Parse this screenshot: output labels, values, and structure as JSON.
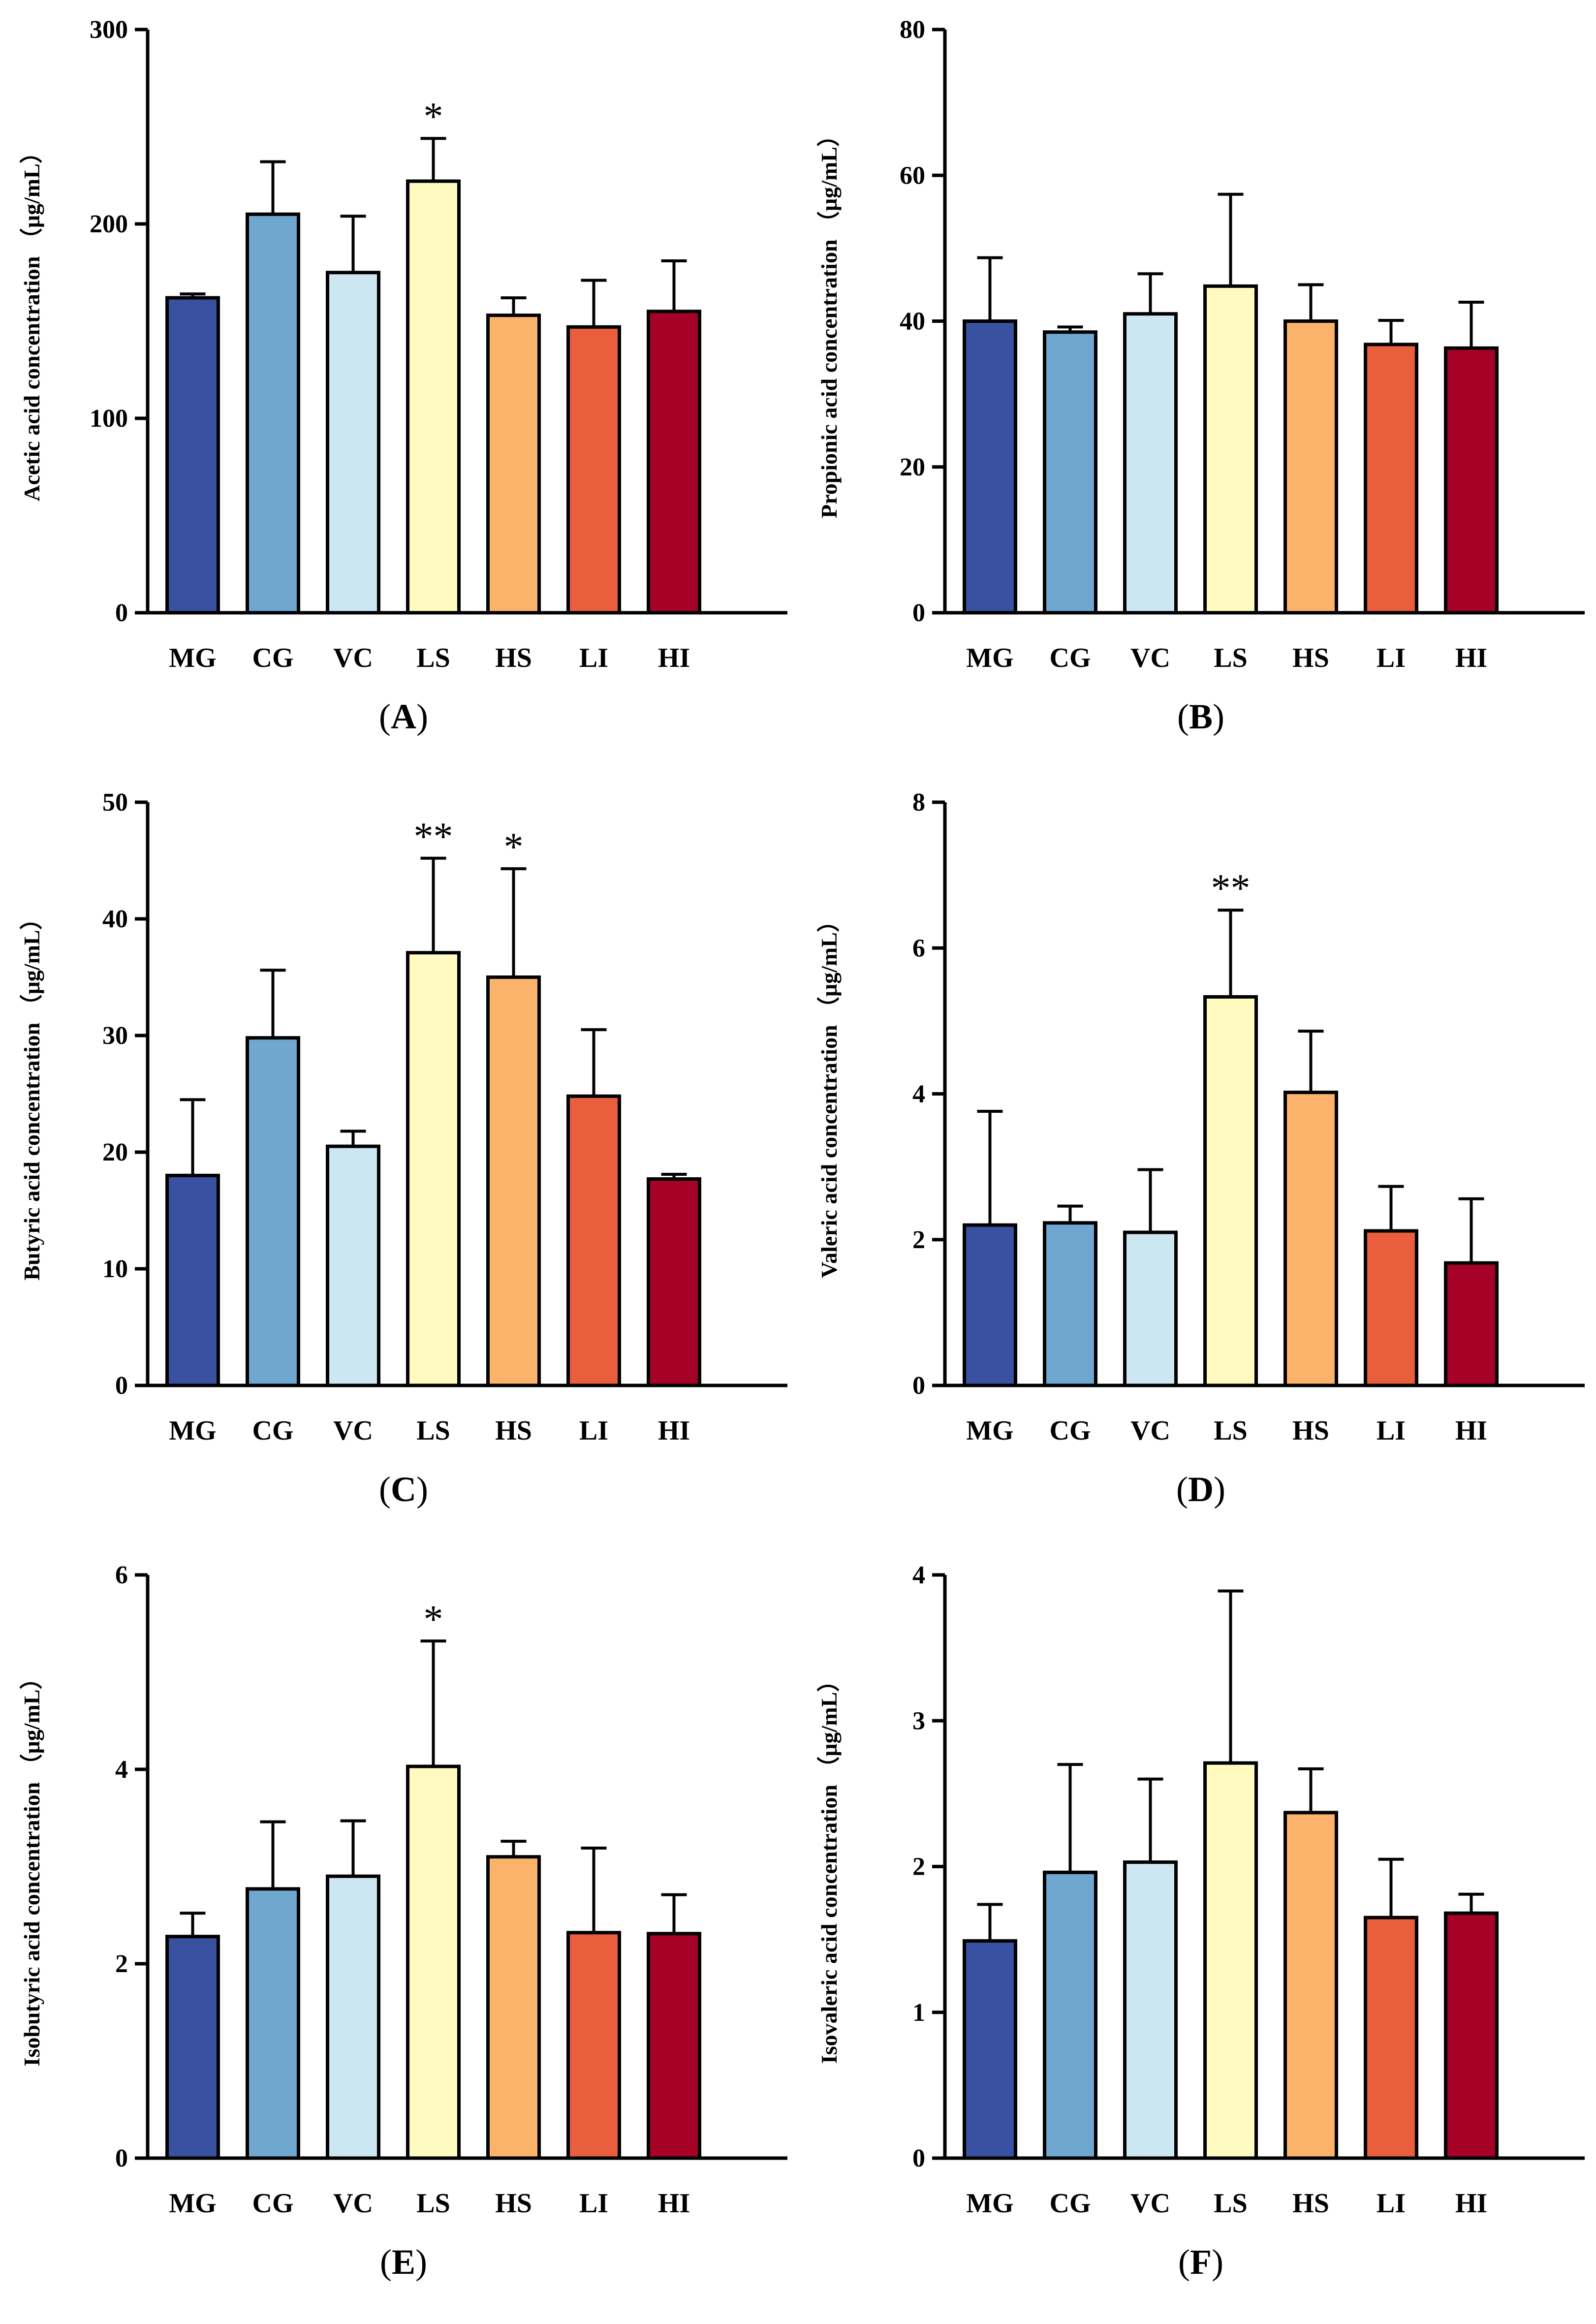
{
  "colors": [
    "#3a50a1",
    "#6fa7d0",
    "#cde7f2",
    "#fffbc0",
    "#fbb36b",
    "#e95e3d",
    "#a60126"
  ],
  "chart_data": [
    {
      "panel": "A",
      "type": "bar",
      "ylabel": "Acetic acid concentration （μg/mL）",
      "categories": [
        "MG",
        "CG",
        "VC",
        "LS",
        "HS",
        "LI",
        "HI"
      ],
      "values": [
        162,
        205,
        175,
        222,
        153,
        147,
        155
      ],
      "errors": [
        164,
        232,
        204,
        244,
        162,
        171,
        181
      ],
      "ylim": [
        0,
        300
      ],
      "ticks": [
        0,
        100,
        200,
        300
      ],
      "sig": [
        "",
        "",
        "",
        "*",
        "",
        "",
        ""
      ]
    },
    {
      "panel": "B",
      "type": "bar",
      "ylabel": "Propionic acid concentration （μg/mL）",
      "categories": [
        "MG",
        "CG",
        "VC",
        "LS",
        "HS",
        "LI",
        "HI"
      ],
      "values": [
        40.0,
        38.5,
        41.0,
        44.8,
        40.0,
        36.8,
        36.3
      ],
      "errors": [
        48.7,
        39.2,
        46.5,
        57.4,
        45.0,
        40.1,
        42.6
      ],
      "ylim": [
        0,
        80
      ],
      "ticks": [
        0,
        20,
        40,
        60,
        80
      ],
      "sig": [
        "",
        "",
        "",
        "",
        "",
        "",
        ""
      ]
    },
    {
      "panel": "C",
      "type": "bar",
      "ylabel": "Butyric acid concentration （μg/mL）",
      "categories": [
        "MG",
        "CG",
        "VC",
        "LS",
        "HS",
        "LI",
        "HI"
      ],
      "values": [
        18.0,
        29.8,
        20.5,
        37.1,
        35.0,
        24.8,
        17.7
      ],
      "errors": [
        24.5,
        35.6,
        21.8,
        45.2,
        44.3,
        30.5,
        18.1
      ],
      "ylim": [
        0,
        50
      ],
      "ticks": [
        0,
        10,
        20,
        30,
        40,
        50
      ],
      "sig": [
        "",
        "",
        "",
        "**",
        "*",
        "",
        ""
      ]
    },
    {
      "panel": "D",
      "type": "bar",
      "ylabel": "Valeric acid concentration （μg/mL）",
      "categories": [
        "MG",
        "CG",
        "VC",
        "LS",
        "HS",
        "LI",
        "HI"
      ],
      "values": [
        2.2,
        2.23,
        2.1,
        5.33,
        4.02,
        2.12,
        1.68
      ],
      "errors": [
        3.76,
        2.46,
        2.96,
        6.52,
        4.86,
        2.73,
        2.56
      ],
      "ylim": [
        0,
        8
      ],
      "ticks": [
        0,
        2,
        4,
        6,
        8
      ],
      "sig": [
        "",
        "",
        "",
        "**",
        "",
        "",
        ""
      ]
    },
    {
      "panel": "E",
      "type": "bar",
      "ylabel": "Isobutyric acid concentration （μg/mL）",
      "categories": [
        "MG",
        "CG",
        "VC",
        "LS",
        "HS",
        "LI",
        "HI"
      ],
      "values": [
        2.28,
        2.77,
        2.9,
        4.03,
        3.1,
        2.32,
        2.31
      ],
      "errors": [
        2.52,
        3.46,
        3.47,
        5.32,
        3.26,
        3.19,
        2.71
      ],
      "ylim": [
        0,
        6
      ],
      "ticks": [
        0,
        2,
        4,
        6
      ],
      "sig": [
        "",
        "",
        "",
        "*",
        "",
        "",
        ""
      ]
    },
    {
      "panel": "F",
      "type": "bar",
      "ylabel": "Isovaleric acid concentration （μg/mL）",
      "categories": [
        "MG",
        "CG",
        "VC",
        "LS",
        "HS",
        "LI",
        "HI"
      ],
      "values": [
        1.49,
        1.96,
        2.03,
        2.71,
        2.37,
        1.65,
        1.68
      ],
      "errors": [
        1.74,
        2.7,
        2.6,
        3.89,
        2.67,
        2.05,
        1.81
      ],
      "ylim": [
        0,
        4
      ],
      "ticks": [
        0,
        1,
        2,
        3,
        4
      ],
      "sig": [
        "",
        "",
        "",
        "",
        "",
        "",
        ""
      ]
    }
  ],
  "panel_labels": [
    "A",
    "B",
    "C",
    "D",
    "E",
    "F"
  ]
}
